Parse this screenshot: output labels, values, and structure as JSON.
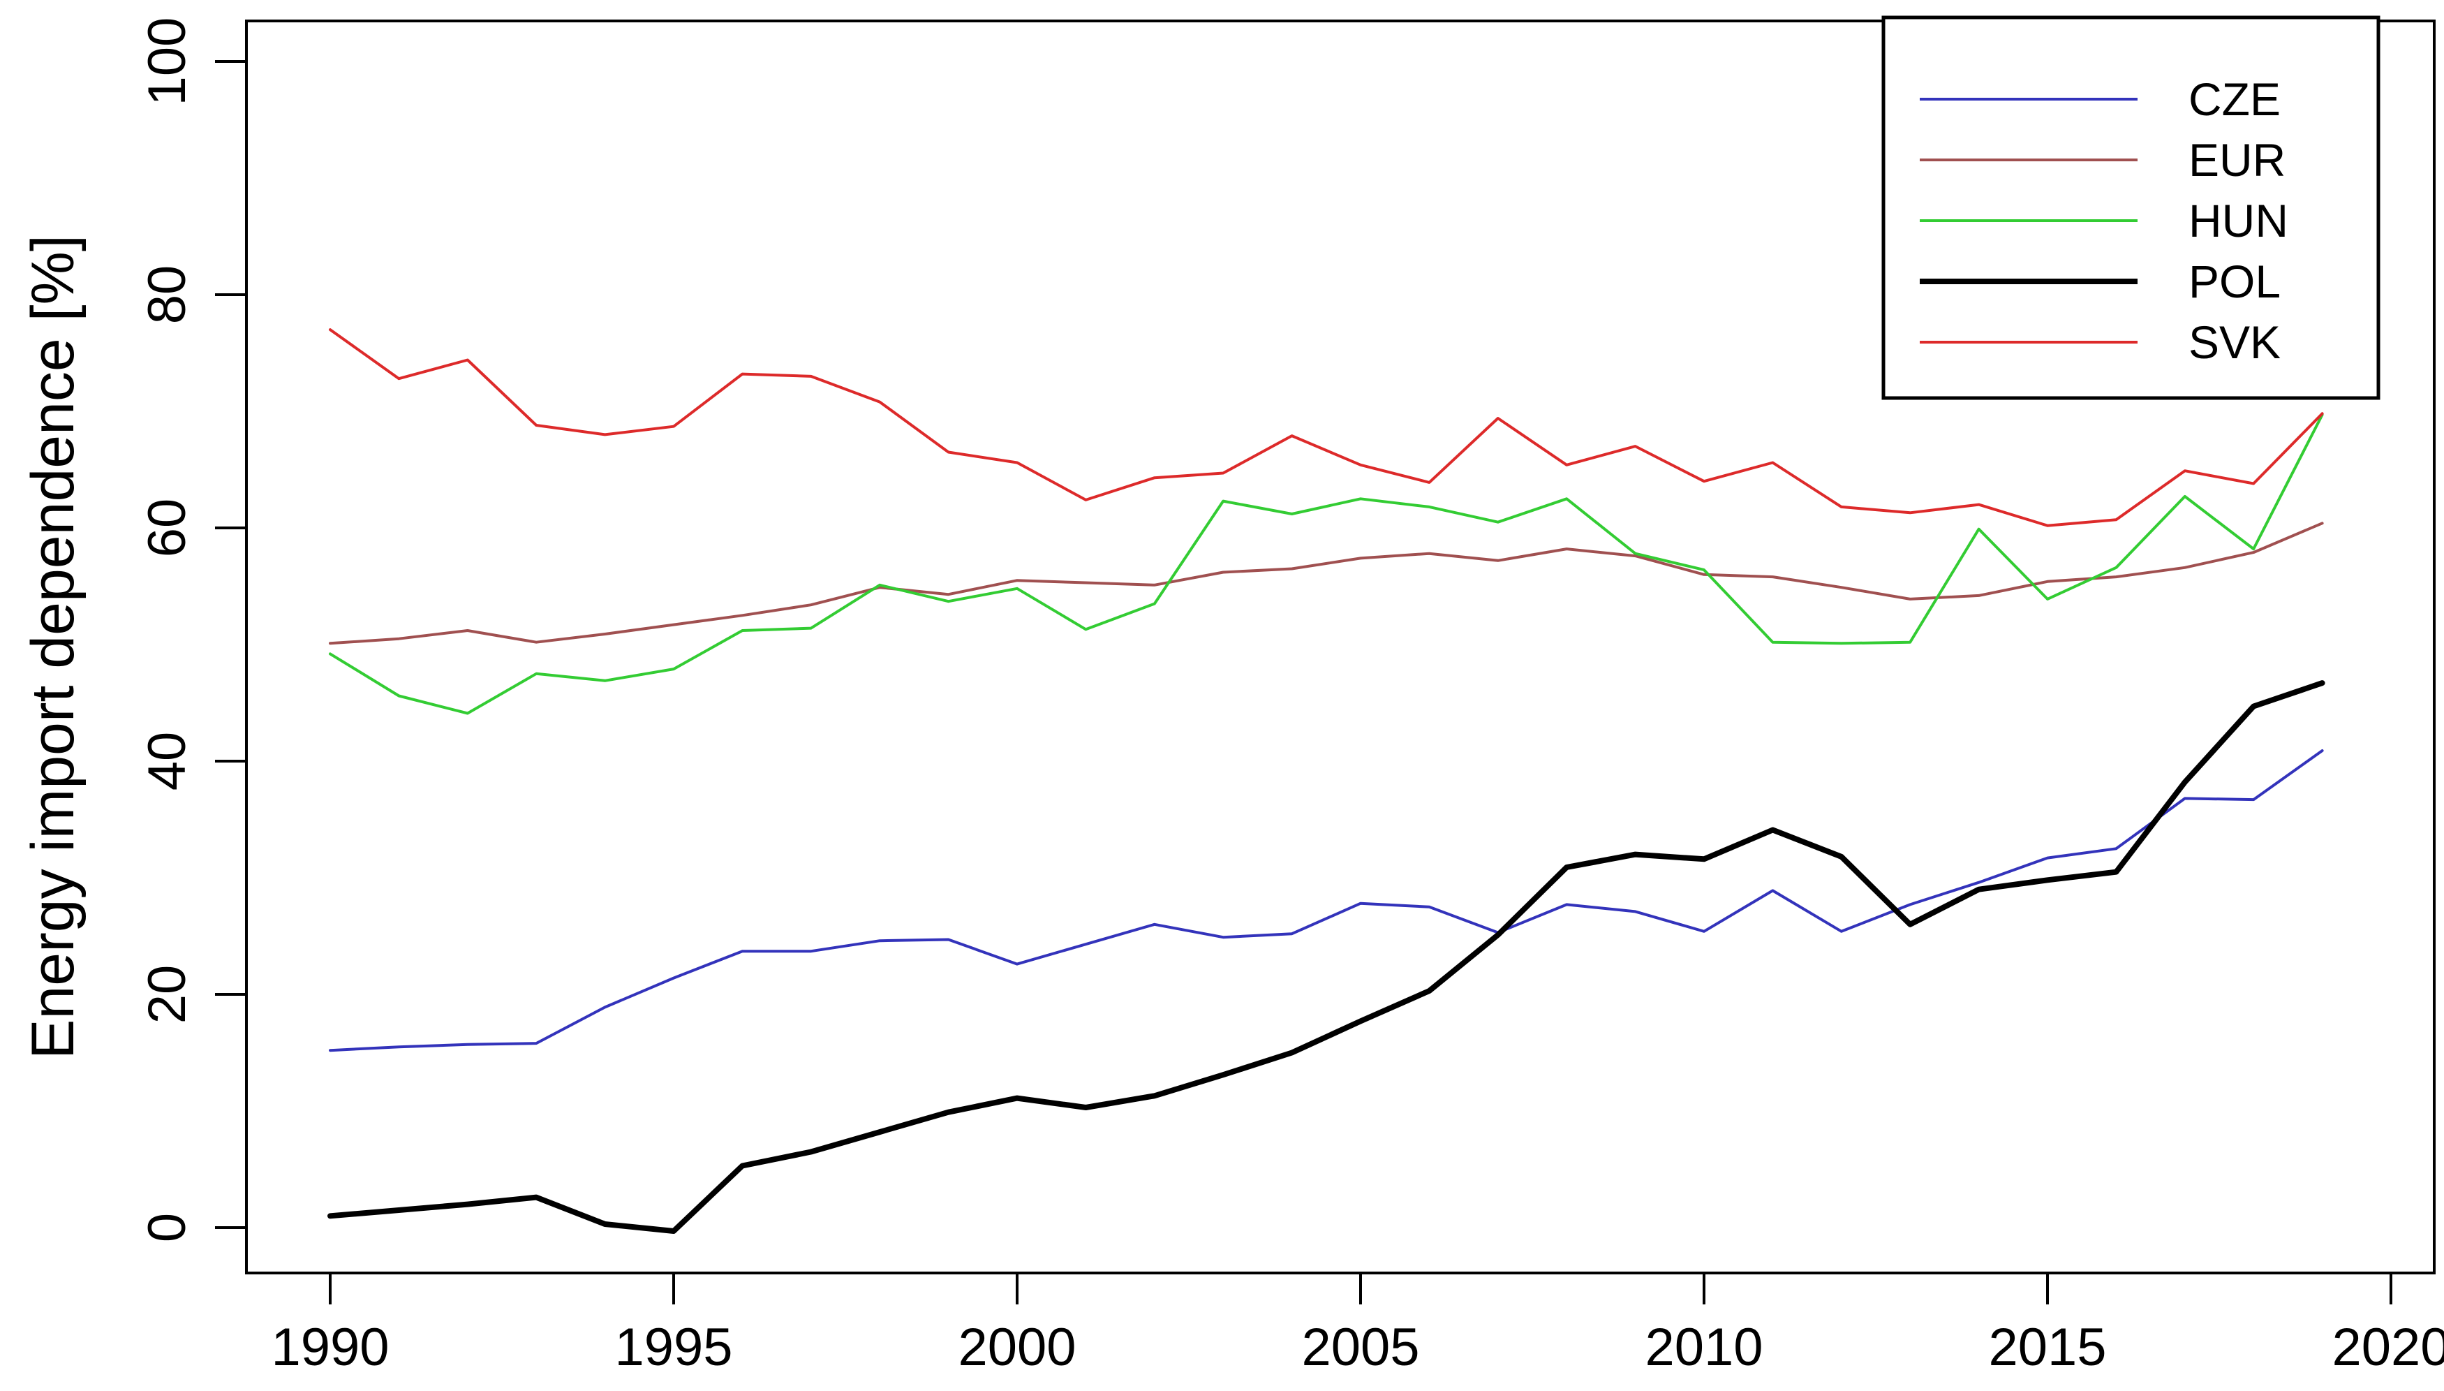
{
  "figure": {
    "background": "#ffffff",
    "axis_color": "#000000",
    "ylabel": "Energy import dependence [%]"
  },
  "chart_data": {
    "type": "line",
    "title": "",
    "xlabel": "",
    "ylabel": "Energy import dependence [%]",
    "grid": false,
    "legend_position": "top-right",
    "xlim": [
      1988.8,
      2020.6
    ],
    "ylim": [
      -3.9,
      103.5
    ],
    "xticks": [
      1990,
      1995,
      2000,
      2005,
      2010,
      2015,
      2020
    ],
    "yticks": [
      0,
      20,
      40,
      60,
      80,
      100
    ],
    "x": [
      1990,
      1991,
      1992,
      1993,
      1994,
      1995,
      1996,
      1997,
      1998,
      1999,
      2000,
      2001,
      2002,
      2003,
      2004,
      2005,
      2006,
      2007,
      2008,
      2009,
      2010,
      2011,
      2012,
      2013,
      2014,
      2015,
      2016,
      2017,
      2018,
      2019
    ],
    "series": [
      {
        "name": "CZE",
        "color": "#3333BB",
        "line_width": 4,
        "values": [
          15.2,
          15.5,
          15.7,
          15.8,
          18.9,
          21.4,
          23.7,
          23.7,
          24.6,
          24.7,
          22.6,
          24.3,
          26.0,
          24.9,
          25.2,
          27.8,
          27.5,
          25.3,
          27.7,
          27.1,
          25.4,
          28.9,
          25.4,
          27.7,
          29.6,
          31.7,
          32.5,
          36.8,
          36.7,
          40.9
        ]
      },
      {
        "name": "EUR",
        "color": "#A05050",
        "line_width": 4,
        "values": [
          50.1,
          50.5,
          51.2,
          50.2,
          50.9,
          51.7,
          52.5,
          53.4,
          54.9,
          54.3,
          55.5,
          55.3,
          55.1,
          56.2,
          56.5,
          57.4,
          57.8,
          57.2,
          58.2,
          57.6,
          56.0,
          55.8,
          54.9,
          53.9,
          54.2,
          55.4,
          55.8,
          56.6,
          57.9,
          60.4
        ]
      },
      {
        "name": "HUN",
        "color": "#33CC33",
        "line_width": 4,
        "values": [
          49.2,
          45.6,
          44.1,
          47.5,
          46.9,
          47.9,
          51.2,
          51.4,
          55.1,
          53.7,
          54.8,
          51.3,
          53.5,
          62.3,
          61.2,
          62.5,
          61.8,
          60.5,
          62.5,
          57.8,
          56.4,
          50.2,
          50.1,
          50.2,
          59.9,
          53.9,
          56.6,
          62.7,
          58.2,
          69.7
        ]
      },
      {
        "name": "POL",
        "color": "#000000",
        "line_width": 8,
        "values": [
          1.0,
          1.5,
          2.0,
          2.6,
          0.3,
          -0.3,
          5.3,
          6.5,
          8.2,
          9.9,
          11.1,
          10.3,
          11.3,
          13.1,
          15.0,
          17.7,
          20.3,
          25.1,
          30.9,
          32.0,
          31.6,
          34.1,
          31.8,
          26.0,
          29.0,
          29.8,
          30.5,
          38.2,
          44.7,
          46.7
        ]
      },
      {
        "name": "SVK",
        "color": "#DD2A2A",
        "line_width": 4,
        "values": [
          77.0,
          72.8,
          74.4,
          68.8,
          68.0,
          68.7,
          73.2,
          73.0,
          70.8,
          66.5,
          65.6,
          62.4,
          64.3,
          64.7,
          67.9,
          65.4,
          63.9,
          69.4,
          65.4,
          67.0,
          64.0,
          65.6,
          61.8,
          61.3,
          62.0,
          60.2,
          60.7,
          64.9,
          63.8,
          69.8
        ]
      }
    ]
  }
}
